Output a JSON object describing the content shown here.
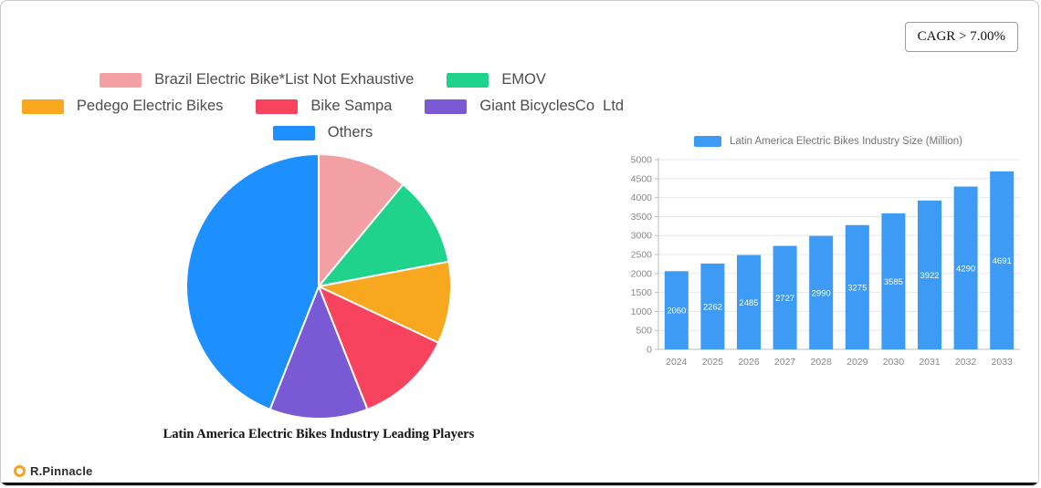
{
  "badge": {
    "label": "CAGR > 7.00%"
  },
  "logo": {
    "text": "R.Pinnacle"
  },
  "chart_data": [
    {
      "type": "pie",
      "title": "Latin America Electric Bikes Industry Leading Players",
      "labels": [
        "Brazil Electric Bike*List Not Exhaustive",
        "EMOV",
        "Pedego Electric Bikes",
        "Bike Sampa",
        "Giant BicyclesCo  Ltd",
        "Others"
      ],
      "values": [
        11,
        11,
        10,
        12,
        12,
        44
      ],
      "values_unit": "percent-estimated",
      "colors": [
        "#f2a0a3",
        "#1fd38c",
        "#f8a81f",
        "#f8435e",
        "#7a59d4",
        "#1e8fff"
      ],
      "start_angle_deg": -90,
      "direction": "clockwise",
      "legend_position": "top",
      "legend_rows": [
        [
          0,
          1
        ],
        [
          2,
          3,
          4
        ],
        [
          5
        ]
      ]
    },
    {
      "type": "bar",
      "title": "Latin America Electric Bikes Industry Size (Million)",
      "categories": [
        "2024",
        "2025",
        "2026",
        "2027",
        "2028",
        "2029",
        "2030",
        "2031",
        "2032",
        "2033"
      ],
      "values": [
        2060,
        2262,
        2485,
        2727,
        2990,
        3275,
        3585,
        3922,
        4290,
        4691
      ],
      "bar_color": "#3d9bf5",
      "value_label_color": "#ffffff",
      "ylim": [
        0,
        5000
      ],
      "ytick_step": 500,
      "grid": true,
      "legend_position": "top",
      "axis_text_color": "#888888"
    }
  ]
}
